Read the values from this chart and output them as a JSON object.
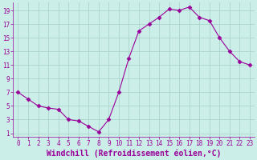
{
  "x": [
    0,
    1,
    2,
    3,
    4,
    5,
    6,
    7,
    8,
    9,
    10,
    11,
    12,
    13,
    14,
    15,
    16,
    17,
    18,
    19,
    20,
    21,
    22,
    23
  ],
  "y": [
    7,
    6,
    5,
    4.7,
    4.5,
    3,
    2.8,
    2,
    1.2,
    3,
    7,
    12,
    16,
    17,
    18,
    19.2,
    19,
    19.5,
    18,
    17.5,
    15,
    13,
    11.5,
    11
  ],
  "line_color": "#990099",
  "marker": "D",
  "marker_size": 2.5,
  "bg_color": "#cceee8",
  "grid_color": "#aad4cc",
  "xlabel": "Windchill (Refroidissement éolien,°C)",
  "xlabel_fontsize": 7,
  "ylabel_ticks": [
    1,
    3,
    5,
    7,
    9,
    11,
    13,
    15,
    17,
    19
  ],
  "ylim": [
    0.5,
    20.2
  ],
  "xlim": [
    -0.5,
    23.5
  ],
  "xticks": [
    0,
    1,
    2,
    3,
    4,
    5,
    6,
    7,
    8,
    9,
    10,
    11,
    12,
    13,
    14,
    15,
    16,
    17,
    18,
    19,
    20,
    21,
    22,
    23
  ],
  "tick_fontsize": 5.5,
  "tick_color": "#990099",
  "spine_color": "#aaaaaa"
}
